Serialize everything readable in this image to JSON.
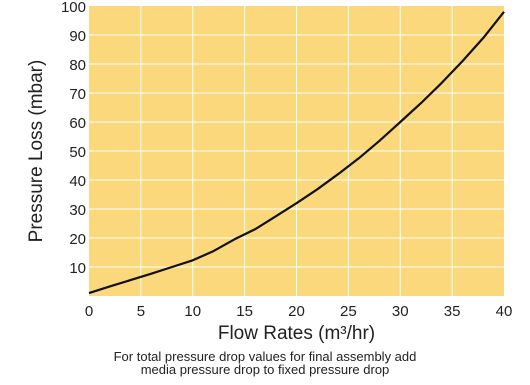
{
  "chart_data": {
    "type": "line",
    "title": "",
    "xlabel": "Flow Rates (m³/hr)",
    "ylabel": "Pressure Loss (mbar)",
    "xlim": [
      0,
      40
    ],
    "ylim": [
      0,
      100
    ],
    "x_ticks": [
      0,
      5,
      10,
      15,
      20,
      25,
      30,
      35,
      40
    ],
    "y_ticks": [
      10,
      20,
      30,
      40,
      50,
      60,
      70,
      80,
      90,
      100
    ],
    "grid": true,
    "background_color": "#fcd87c",
    "grid_color": "#ffffff",
    "line_color": "#111111",
    "series": [
      {
        "x": [
          0,
          2,
          4,
          6,
          8,
          10,
          12,
          14,
          16,
          18,
          20,
          22,
          24,
          26,
          28,
          30,
          32,
          34,
          36,
          38,
          40
        ],
        "y": [
          1,
          3.3,
          5.5,
          7.7,
          10,
          12.3,
          15.5,
          19.5,
          23,
          27.5,
          32,
          36.8,
          42,
          47.5,
          53.5,
          60,
          66.5,
          73.5,
          81,
          89,
          98
        ]
      }
    ]
  },
  "footnote": {
    "line1": "For total pressure drop values for final assembly add",
    "line2": "media pressure drop to fixed pressure drop"
  }
}
